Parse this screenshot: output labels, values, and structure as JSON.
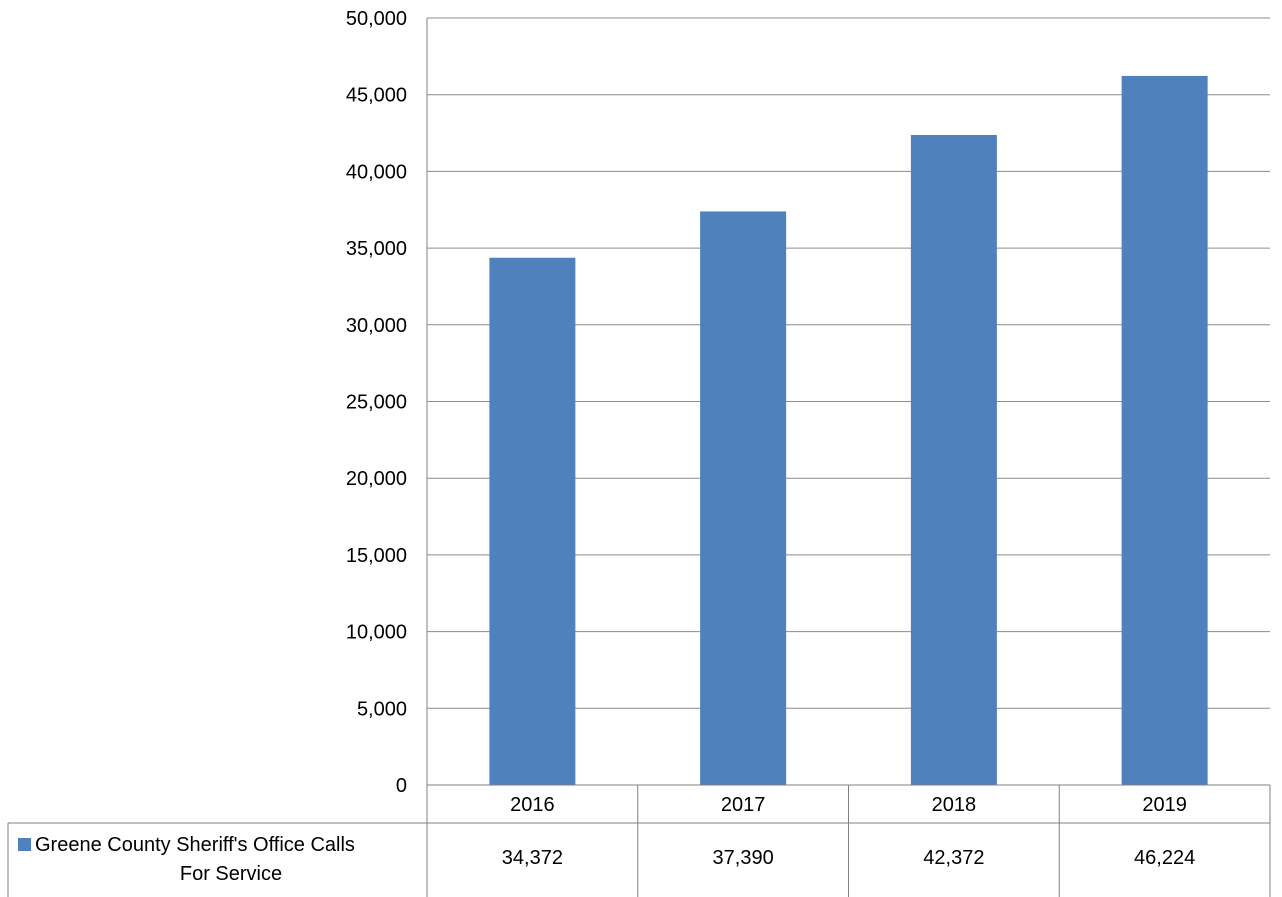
{
  "chart_data": {
    "type": "bar",
    "categories": [
      "2016",
      "2017",
      "2018",
      "2019"
    ],
    "series": [
      {
        "name": "Greene County Sheriff's Office Calls For Service",
        "name_lines": [
          "Greene County Sheriff's Office Calls",
          "For Service"
        ],
        "values": [
          34372,
          37390,
          42372,
          46224
        ],
        "value_labels": [
          "34,372",
          "37,390",
          "42,372",
          "46,224"
        ],
        "color": "#4f81bd"
      }
    ],
    "yticks": [
      "0",
      "5,000",
      "10,000",
      "15,000",
      "20,000",
      "25,000",
      "30,000",
      "35,000",
      "40,000",
      "45,000",
      "50,000"
    ],
    "ylim": [
      0,
      50000
    ],
    "grid": true,
    "legend": "data-table-left",
    "data_table": true
  }
}
